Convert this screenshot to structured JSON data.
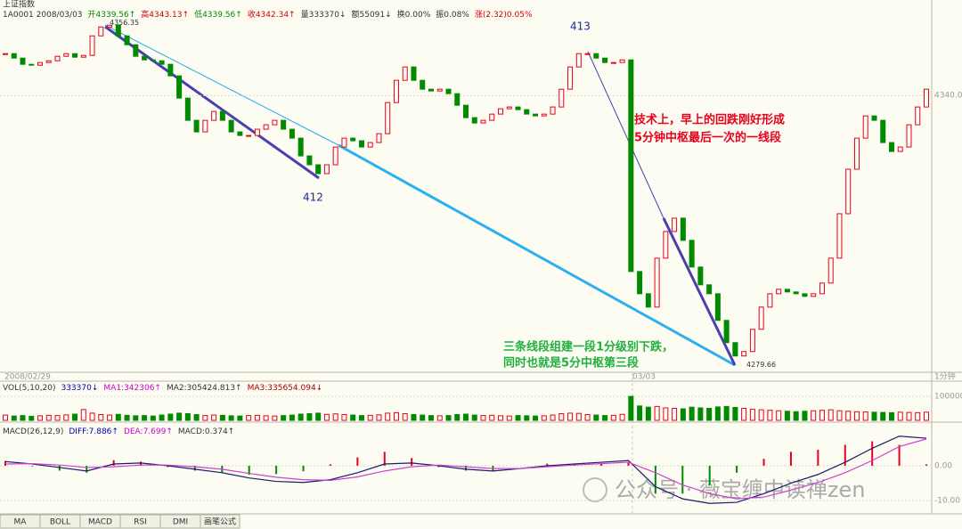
{
  "toolbar": {
    "tabs": [
      "MA",
      "BOLL",
      "MACD",
      "RSI",
      "DMI",
      "画笔公式"
    ]
  },
  "watermark": "公众号 · 薇宝缠中读禅zen",
  "chart_data": [
    {
      "type": "candlestick",
      "title": "上证指数",
      "info": [
        {
          "text": "1A0001 2008/03/03",
          "color": "#333333"
        },
        {
          "text": "开4339.56↑",
          "color": "#008a00"
        },
        {
          "text": "高4343.13↑",
          "color": "#d00000"
        },
        {
          "text": "低4339.56↑",
          "color": "#008a00"
        },
        {
          "text": "收4342.34↑",
          "color": "#d00000"
        },
        {
          "text": "量333370↓",
          "color": "#333333"
        },
        {
          "text": "额55091↓",
          "color": "#333333"
        },
        {
          "text": "换0.00%",
          "color": "#333333"
        },
        {
          "text": "振0.08%",
          "color": "#333333"
        },
        {
          "text": "涨(2.32)0.05%",
          "color": "#d00000"
        }
      ],
      "close": [
        4349.38,
        4348.38,
        4346.99,
        4346.79,
        4347.39,
        4347.78,
        4348.78,
        4349.38,
        4348.58,
        4348.98,
        4353.36,
        4355.35,
        4355.75,
        4353.36,
        4351.37,
        4348.78,
        4347.98,
        4347.78,
        4346.99,
        4344.4,
        4339.42,
        4334.44,
        4331.85,
        4334.44,
        4336.43,
        4334.44,
        4331.85,
        4331.05,
        4331.05,
        4332.45,
        4333.44,
        4334.44,
        4332.45,
        4330.45,
        4326.47,
        4324.48,
        4322.49,
        4324.48,
        4328.46,
        4330.45,
        4329.86,
        4328.46,
        4329.46,
        4331.45,
        4338.42,
        4343.4,
        4346.39,
        4343.4,
        4341.41,
        4341.01,
        4341.41,
        4340.41,
        4337.82,
        4335.04,
        4333.84,
        4334.44,
        4335.83,
        4337.03,
        4337.43,
        4336.83,
        4335.83,
        4335.43,
        4335.83,
        4337.43,
        4341.41,
        4346.39,
        4349.38,
        4349.38,
        4348.38,
        4347.39,
        4347.39,
        4347.98,
        4300.57,
        4295.59,
        4292.6,
        4303.56,
        4309.54,
        4312.53,
        4307.55,
        4301.57,
        4297.59,
        4295.59,
        4289.62,
        4284.64,
        4281.65,
        4282.64,
        4287.62,
        4292.6,
        4295.59,
        4296.59,
        4295.99,
        4295.59,
        4295.0,
        4295.59,
        4297.98,
        4303.56,
        4313.52,
        4323.48,
        4330.45,
        4335.43,
        4334.44,
        4329.46,
        4327.47,
        4328.46,
        4333.44,
        4337.43,
        4341.41
      ],
      "ylim": [
        4278,
        4359
      ],
      "yticks": [
        {
          "value": 4340,
          "label": "4340.00"
        }
      ],
      "colors": {
        "up": "#e8001c",
        "down": "#008a00"
      },
      "extremes": [
        4356.35,
        4279.66
      ],
      "x_labels": [
        "2008/02/29",
        "03/03"
      ],
      "period": "1分钟",
      "annotations": [
        "412",
        "413",
        "技术上，早上的回跌刚好形成",
        "5分钟中枢最后一次的一线段",
        "三条线段组建一段1分级别下跌，",
        "同时也就是5分中枢第三段"
      ]
    },
    {
      "type": "bar",
      "legend": [
        {
          "text": "VOL(5,10,20)",
          "color": "#333333"
        },
        {
          "text": "333370↓",
          "color": "#0000aa"
        },
        {
          "text": "MA1:342306↑",
          "color": "#cc00cc"
        },
        {
          "text": "MA2:305424.813↑",
          "color": "#333333"
        },
        {
          "text": "MA3:335654.094↓",
          "color": "#aa0000"
        }
      ],
      "values": [
        22000,
        18000,
        20000,
        17000,
        19000,
        21000,
        20000,
        23000,
        26000,
        45000,
        30000,
        24000,
        22000,
        25000,
        21000,
        19000,
        20000,
        18000,
        22000,
        26000,
        30000,
        28000,
        24000,
        20000,
        22000,
        21000,
        19000,
        18000,
        20000,
        21000,
        19000,
        18000,
        20000,
        22000,
        26000,
        28000,
        30000,
        25000,
        27000,
        24000,
        22000,
        20000,
        21000,
        23000,
        30000,
        32000,
        28000,
        24000,
        22000,
        20000,
        19000,
        20000,
        24000,
        26000,
        22000,
        20000,
        21000,
        19000,
        18000,
        20000,
        19000,
        18000,
        19000,
        22000,
        28000,
        30000,
        29000,
        24000,
        22000,
        20000,
        21000,
        25000,
        100000,
        60000,
        55000,
        58000,
        52000,
        50000,
        48000,
        55000,
        52000,
        50000,
        56000,
        58000,
        54000,
        50000,
        46000,
        44000,
        42000,
        40000,
        38000,
        36000,
        38000,
        40000,
        42000,
        44000,
        40000,
        38000,
        36000,
        35000,
        34000,
        33000,
        32000,
        34000,
        33000,
        32000,
        34000
      ],
      "ylim": [
        0,
        130000
      ],
      "yticks": [
        100000
      ]
    },
    {
      "type": "macd",
      "legend": [
        {
          "text": "MACD(26,12,9)",
          "color": "#333333"
        },
        {
          "text": "DIFF:7.886↑",
          "color": "#0000aa"
        },
        {
          "text": "DEA:7.699↑",
          "color": "#cc00cc"
        },
        {
          "text": "MACD:0.374↑",
          "color": "#333333"
        }
      ],
      "diff_color": "#1a1a6e",
      "dea_color": "#d040d0",
      "diff": [
        1.2,
        0.5,
        -0.5,
        -1.5,
        0.5,
        0.8,
        0.0,
        -1.0,
        -2.0,
        -3.5,
        -4.5,
        -4.8,
        -4.0,
        -2.0,
        0.5,
        0.8,
        0.0,
        -1.0,
        -1.5,
        -0.8,
        0.0,
        0.5,
        1.0,
        1.5,
        -6.0,
        -9.5,
        -10.8,
        -10.5,
        -8.0,
        -5.0,
        -2.5,
        1.0,
        5.0,
        8.5,
        7.9
      ],
      "dea": [
        0.5,
        0.6,
        0.2,
        -0.5,
        -0.3,
        0.2,
        0.2,
        -0.3,
        -1.0,
        -2.2,
        -3.3,
        -4.0,
        -4.2,
        -3.2,
        -1.5,
        -0.3,
        0.2,
        -0.3,
        -0.8,
        -0.8,
        -0.3,
        0.2,
        0.6,
        1.0,
        -2.0,
        -5.5,
        -8.0,
        -9.5,
        -9.0,
        -7.0,
        -4.8,
        -2.0,
        1.5,
        5.5,
        7.7
      ],
      "macd": [
        1.4,
        -0.2,
        -1.4,
        -2.0,
        1.6,
        1.2,
        -0.4,
        -1.4,
        -2.0,
        -2.6,
        -2.4,
        -1.6,
        0.4,
        2.4,
        4.0,
        2.2,
        -0.4,
        -1.4,
        -1.4,
        0,
        0.6,
        0.6,
        0.8,
        1.0,
        -8.0,
        -8.0,
        -5.6,
        -2.0,
        2.0,
        4.0,
        4.6,
        6.0,
        7.0,
        6.0,
        0.4
      ],
      "ylim": [
        -13.3,
        11.5
      ],
      "yticks": [
        {
          "value": 0,
          "label": "0.00"
        },
        {
          "value": -10,
          "label": "-10.00"
        }
      ]
    }
  ]
}
